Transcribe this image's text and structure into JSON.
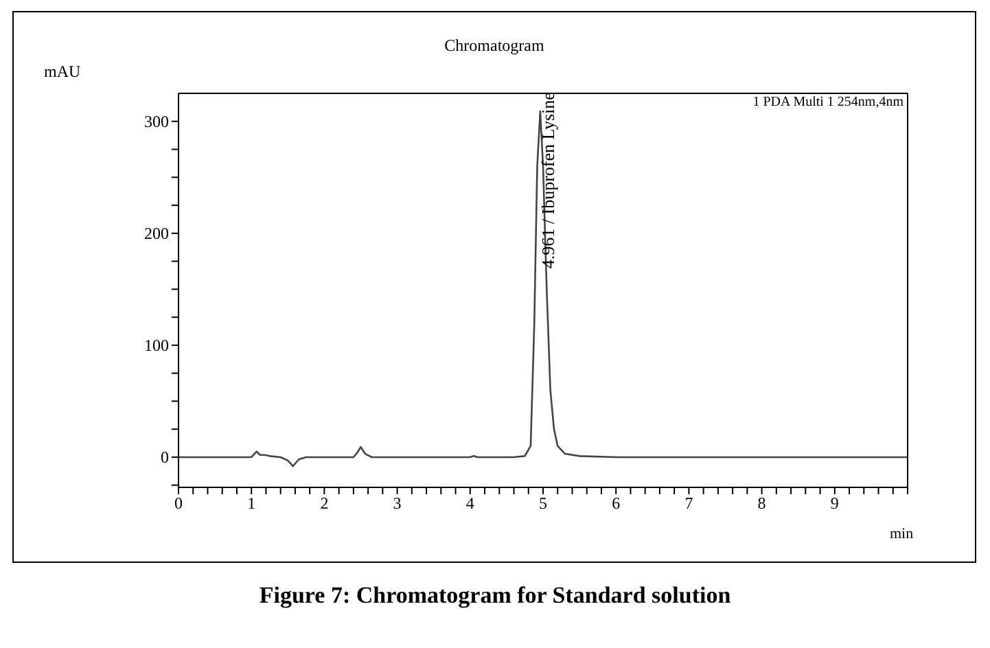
{
  "chart_data": {
    "type": "line",
    "title": "Chromatogram",
    "xlabel": "min",
    "ylabel": "mAU",
    "x": [
      0,
      1.0,
      1.07,
      1.12,
      1.18,
      1.25,
      1.4,
      1.5,
      1.57,
      1.65,
      1.75,
      2.4,
      2.45,
      2.5,
      2.56,
      2.65,
      4.0,
      4.05,
      4.1,
      4.6,
      4.75,
      4.83,
      4.88,
      4.92,
      4.961,
      5.0,
      5.05,
      5.1,
      5.15,
      5.2,
      5.3,
      5.5,
      6,
      10
    ],
    "series": [
      {
        "color": "#444444",
        "values": [
          0,
          0,
          5,
          2,
          2,
          1,
          0,
          -3,
          -8,
          -2,
          0,
          0,
          4,
          9,
          3,
          0,
          0,
          1,
          0,
          0,
          1,
          10,
          120,
          260,
          309,
          260,
          150,
          60,
          25,
          10,
          3,
          1,
          0,
          0
        ]
      }
    ],
    "xlim": [
      0,
      10
    ],
    "ylim": [
      -27,
      325
    ],
    "xticks": [
      0,
      {
        "value": 0.2,
        "label": null
      },
      {
        "value": 0.4,
        "label": null
      },
      {
        "value": 0.6,
        "label": null
      },
      {
        "value": 0.8,
        "label": null
      },
      1,
      {
        "value": 1.2,
        "label": null
      },
      {
        "value": 1.4,
        "label": null
      },
      {
        "value": 1.6,
        "label": null
      },
      {
        "value": 1.8,
        "label": null
      },
      2,
      {
        "value": 2.2,
        "label": null
      },
      {
        "value": 2.4,
        "label": null
      },
      {
        "value": 2.6,
        "label": null
      },
      {
        "value": 2.8,
        "label": null
      },
      3,
      {
        "value": 3.2,
        "label": null
      },
      {
        "value": 3.4,
        "label": null
      },
      {
        "value": 3.6,
        "label": null
      },
      {
        "value": 3.8,
        "label": null
      },
      4,
      {
        "value": 4.2,
        "label": null
      },
      {
        "value": 4.4,
        "label": null
      },
      {
        "value": 4.6,
        "label": null
      },
      {
        "value": 4.8,
        "label": null
      },
      5,
      {
        "value": 5.2,
        "label": null
      },
      {
        "value": 5.4,
        "label": null
      },
      {
        "value": 5.6,
        "label": null
      },
      {
        "value": 5.8,
        "label": null
      },
      6,
      {
        "value": 6.2,
        "label": null
      },
      {
        "value": 6.4,
        "label": null
      },
      {
        "value": 6.6,
        "label": null
      },
      {
        "value": 6.8,
        "label": null
      },
      7,
      {
        "value": 7.2,
        "label": null
      },
      {
        "value": 7.4,
        "label": null
      },
      {
        "value": 7.6,
        "label": null
      },
      {
        "value": 7.8,
        "label": null
      },
      8,
      {
        "value": 8.2,
        "label": null
      },
      {
        "value": 8.4,
        "label": null
      },
      {
        "value": 8.6,
        "label": null
      },
      {
        "value": 8.8,
        "label": null
      },
      9,
      {
        "value": 9.2,
        "label": null
      },
      {
        "value": 9.4,
        "label": null
      },
      {
        "value": 9.6,
        "label": null
      },
      {
        "value": 9.8,
        "label": null
      },
      {
        "value": 10,
        "label": null
      }
    ],
    "yticks": [
      {
        "value": -25,
        "label": null
      },
      0,
      {
        "value": 25,
        "label": null
      },
      {
        "value": 50,
        "label": null
      },
      {
        "value": 75,
        "label": null
      },
      100,
      {
        "value": 125,
        "label": null
      },
      {
        "value": 150,
        "label": null
      },
      {
        "value": 175,
        "label": null
      },
      200,
      {
        "value": 225,
        "label": null
      },
      {
        "value": 250,
        "label": null
      },
      {
        "value": 275,
        "label": null
      },
      300
    ],
    "grid": false,
    "legend": false,
    "annotations": [
      "1 PDA Multi 1 254nm,4nm",
      {
        "text": "4.961 / Ibuprofen Lysine",
        "x": 4.961,
        "y": 309
      },
      "Figure 7: Chromatogram for Standard solution"
    ]
  }
}
